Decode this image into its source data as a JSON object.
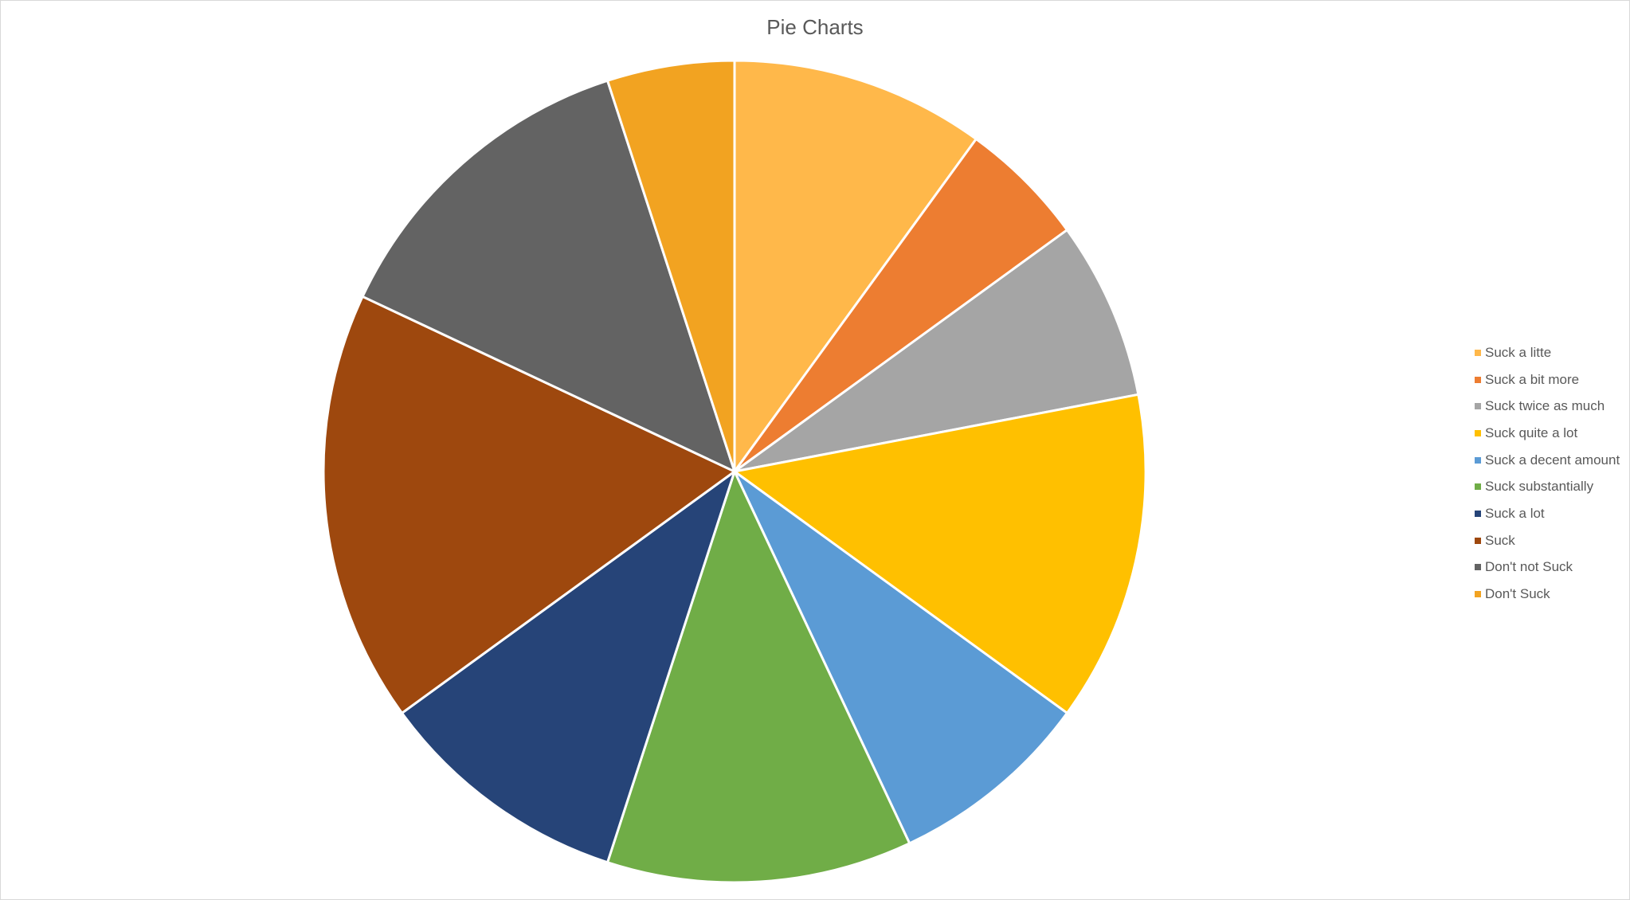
{
  "chart_data": {
    "type": "pie",
    "title": "Pie Charts",
    "legend_position": "right",
    "start_angle": "top",
    "direction": "clockwise",
    "slices": [
      {
        "label": "Suck a litte",
        "value": 10,
        "color": "#FFB84A"
      },
      {
        "label": "Suck a bit more",
        "value": 5,
        "color": "#ED7D31"
      },
      {
        "label": "Suck twice as much",
        "value": 7,
        "color": "#A5A5A5"
      },
      {
        "label": "Suck quite a lot",
        "value": 13,
        "color": "#FFC000"
      },
      {
        "label": "Suck a decent amount",
        "value": 8,
        "color": "#5B9BD5"
      },
      {
        "label": "Suck substantially",
        "value": 12,
        "color": "#70AD47"
      },
      {
        "label": "Suck a lot",
        "value": 10,
        "color": "#264478"
      },
      {
        "label": "Suck",
        "value": 17,
        "color": "#9E480E"
      },
      {
        "label": "Don't not Suck",
        "value": 13,
        "color": "#636363"
      },
      {
        "label": "Don't Suck",
        "value": 5,
        "color": "#F2A321"
      }
    ]
  }
}
